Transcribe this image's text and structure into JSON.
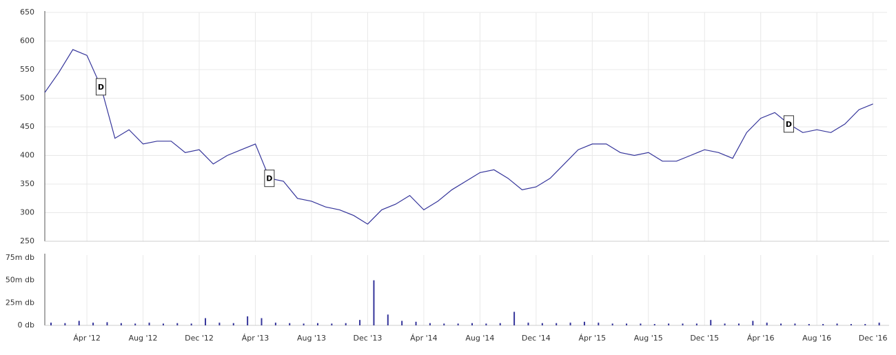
{
  "chart_data": [
    {
      "type": "line",
      "x": [
        "2012-01",
        "2012-02",
        "2012-03",
        "2012-04",
        "2012-05",
        "2012-06",
        "2012-07",
        "2012-08",
        "2012-09",
        "2012-10",
        "2012-11",
        "2012-12",
        "2013-01",
        "2013-02",
        "2013-03",
        "2013-04",
        "2013-05",
        "2013-06",
        "2013-07",
        "2013-08",
        "2013-09",
        "2013-10",
        "2013-11",
        "2013-12",
        "2014-01",
        "2014-02",
        "2014-03",
        "2014-04",
        "2014-05",
        "2014-06",
        "2014-07",
        "2014-08",
        "2014-09",
        "2014-10",
        "2014-11",
        "2014-12",
        "2015-01",
        "2015-02",
        "2015-03",
        "2015-04",
        "2015-05",
        "2015-06",
        "2015-07",
        "2015-08",
        "2015-09",
        "2015-10",
        "2015-11",
        "2015-12",
        "2016-01",
        "2016-02",
        "2016-03",
        "2016-04",
        "2016-05",
        "2016-06",
        "2016-07",
        "2016-08",
        "2016-09",
        "2016-10",
        "2016-11",
        "2016-12"
      ],
      "series": [
        {
          "color": "#34349a",
          "values": [
            510,
            545,
            585,
            575,
            520,
            430,
            445,
            420,
            425,
            425,
            405,
            410,
            385,
            400,
            410,
            420,
            360,
            355,
            325,
            320,
            310,
            305,
            295,
            280,
            305,
            315,
            330,
            305,
            320,
            340,
            355,
            370,
            375,
            360,
            340,
            345,
            360,
            385,
            410,
            420,
            420,
            405,
            400,
            405,
            390,
            390,
            400,
            410,
            405,
            395,
            440,
            465,
            475,
            455,
            440,
            445,
            440,
            455,
            480,
            490
          ]
        }
      ],
      "xlim": [
        "2012-01",
        "2017-01"
      ],
      "ylim": [
        250,
        650
      ],
      "yticks": [
        250,
        300,
        350,
        400,
        450,
        500,
        550,
        600,
        650
      ],
      "grid": true,
      "annotations": [
        {
          "x": "2012-05",
          "label": "D"
        },
        {
          "x": "2013-05",
          "label": "D"
        },
        {
          "x": "2016-06",
          "label": "D"
        }
      ]
    },
    {
      "type": "bar",
      "x": [
        "2012-01",
        "2012-02",
        "2012-03",
        "2012-04",
        "2012-05",
        "2012-06",
        "2012-07",
        "2012-08",
        "2012-09",
        "2012-10",
        "2012-11",
        "2012-12",
        "2013-01",
        "2013-02",
        "2013-03",
        "2013-04",
        "2013-05",
        "2013-06",
        "2013-07",
        "2013-08",
        "2013-09",
        "2013-10",
        "2013-11",
        "2013-12",
        "2014-01",
        "2014-02",
        "2014-03",
        "2014-04",
        "2014-05",
        "2014-06",
        "2014-07",
        "2014-08",
        "2014-09",
        "2014-10",
        "2014-11",
        "2014-12",
        "2015-01",
        "2015-02",
        "2015-03",
        "2015-04",
        "2015-05",
        "2015-06",
        "2015-07",
        "2015-08",
        "2015-09",
        "2015-10",
        "2015-11",
        "2015-12",
        "2016-01",
        "2016-02",
        "2016-03",
        "2016-04",
        "2016-05",
        "2016-06",
        "2016-07",
        "2016-08",
        "2016-09",
        "2016-10",
        "2016-11",
        "2016-12"
      ],
      "values": [
        3000000,
        2500000,
        5000000,
        3000000,
        3500000,
        2500000,
        2000000,
        3000000,
        2000000,
        2500000,
        2000000,
        8000000,
        3000000,
        2500000,
        10000000,
        8000000,
        3000000,
        2500000,
        2000000,
        2500000,
        2000000,
        2500000,
        6000000,
        50000000,
        12000000,
        5000000,
        4000000,
        2500000,
        2000000,
        2000000,
        2500000,
        2000000,
        2500000,
        15000000,
        3000000,
        2500000,
        2500000,
        3000000,
        4000000,
        3000000,
        2000000,
        2000000,
        2000000,
        1500000,
        2000000,
        2000000,
        2000000,
        6000000,
        2000000,
        2000000,
        5000000,
        3000000,
        2000000,
        2000000,
        1500000,
        1500000,
        2000000,
        1500000,
        1500000,
        3000000
      ],
      "color": "#34349a",
      "xlim": [
        "2012-01",
        "2017-01"
      ],
      "ylim": [
        0,
        78000000
      ],
      "yticks": [
        {
          "value": 0,
          "label": "0 db"
        },
        {
          "value": 25000000,
          "label": "25m db"
        },
        {
          "value": 50000000,
          "label": "50m db"
        },
        {
          "value": 75000000,
          "label": "75m db"
        }
      ],
      "xticks": [
        {
          "value": "2012-04",
          "label": "Ápr '12"
        },
        {
          "value": "2012-08",
          "label": "Aug '12"
        },
        {
          "value": "2012-12",
          "label": "Dec '12"
        },
        {
          "value": "2013-04",
          "label": "Ápr '13"
        },
        {
          "value": "2013-08",
          "label": "Aug '13"
        },
        {
          "value": "2013-12",
          "label": "Dec '13"
        },
        {
          "value": "2014-04",
          "label": "Ápr '14"
        },
        {
          "value": "2014-08",
          "label": "Aug '14"
        },
        {
          "value": "2014-12",
          "label": "Dec '14"
        },
        {
          "value": "2015-04",
          "label": "Ápr '15"
        },
        {
          "value": "2015-08",
          "label": "Aug '15"
        },
        {
          "value": "2015-12",
          "label": "Dec '15"
        },
        {
          "value": "2016-04",
          "label": "Ápr '16"
        },
        {
          "value": "2016-08",
          "label": "Aug '16"
        },
        {
          "value": "2016-12",
          "label": "Dec '16"
        }
      ]
    }
  ]
}
